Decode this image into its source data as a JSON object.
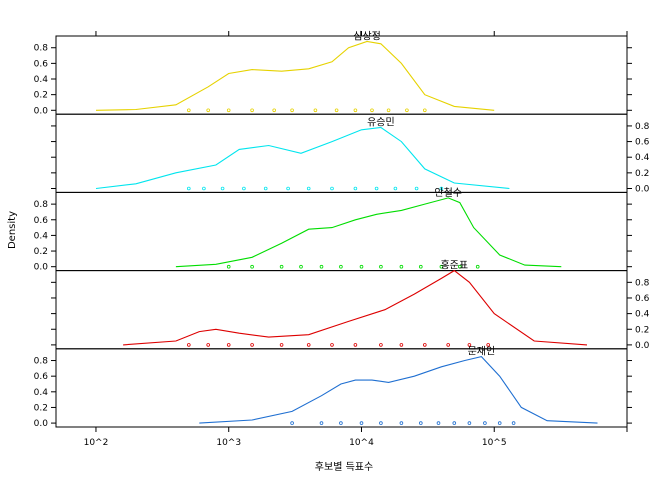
{
  "chart_data": {
    "type": "line",
    "chart_kind": "density plot with rug strips, stacked panels",
    "xlabel": "후보별 득표수",
    "ylabel": "Density",
    "x_scale": "log10",
    "xlim": [
      50,
      1000000
    ],
    "x_tick_values": [
      100,
      1000,
      10000,
      100000
    ],
    "x_tick_labels": [
      "10^2",
      "10^3",
      "10^4",
      "10^5"
    ],
    "ylim": [
      -0.05,
      0.95
    ],
    "y_ticks": [
      0.0,
      0.2,
      0.4,
      0.6,
      0.8
    ],
    "y_tick_labels": [
      "0.0",
      "0.2",
      "0.4",
      "0.6",
      "0.8"
    ],
    "grid": false,
    "legend": "none",
    "panels": [
      {
        "name": "심상정",
        "color": "#e6d200",
        "y_axis_side": "left",
        "points": [
          [
            100,
            0.0
          ],
          [
            200,
            0.01
          ],
          [
            400,
            0.07
          ],
          [
            700,
            0.3
          ],
          [
            1000,
            0.47
          ],
          [
            1500,
            0.52
          ],
          [
            2500,
            0.5
          ],
          [
            4000,
            0.53
          ],
          [
            6000,
            0.62
          ],
          [
            8000,
            0.8
          ],
          [
            11000,
            0.88
          ],
          [
            14000,
            0.85
          ],
          [
            20000,
            0.6
          ],
          [
            30000,
            0.2
          ],
          [
            50000,
            0.05
          ],
          [
            100000,
            0.0
          ]
        ],
        "rug": [
          500,
          700,
          1000,
          1500,
          2200,
          3000,
          4500,
          6500,
          9000,
          12000,
          16000,
          22000,
          30000
        ]
      },
      {
        "name": "유승민",
        "color": "#00e5ee",
        "y_axis_side": "right",
        "points": [
          [
            100,
            0.0
          ],
          [
            200,
            0.06
          ],
          [
            400,
            0.2
          ],
          [
            800,
            0.3
          ],
          [
            1200,
            0.5
          ],
          [
            2000,
            0.55
          ],
          [
            3500,
            0.45
          ],
          [
            6000,
            0.6
          ],
          [
            10000,
            0.75
          ],
          [
            14000,
            0.78
          ],
          [
            20000,
            0.6
          ],
          [
            30000,
            0.25
          ],
          [
            50000,
            0.07
          ],
          [
            130000,
            0.0
          ]
        ],
        "rug": [
          500,
          650,
          900,
          1300,
          1900,
          2800,
          4000,
          6000,
          9000,
          13000,
          18000,
          26000,
          40000
        ]
      },
      {
        "name": "안철수",
        "color": "#00dd00",
        "y_axis_side": "left",
        "points": [
          [
            400,
            0.0
          ],
          [
            800,
            0.03
          ],
          [
            1500,
            0.12
          ],
          [
            2500,
            0.3
          ],
          [
            4000,
            0.48
          ],
          [
            6000,
            0.5
          ],
          [
            9000,
            0.6
          ],
          [
            13000,
            0.67
          ],
          [
            20000,
            0.72
          ],
          [
            30000,
            0.8
          ],
          [
            45000,
            0.88
          ],
          [
            55000,
            0.82
          ],
          [
            70000,
            0.5
          ],
          [
            110000,
            0.15
          ],
          [
            170000,
            0.02
          ],
          [
            320000,
            0.0
          ]
        ],
        "rug": [
          1000,
          1500,
          2500,
          3500,
          5000,
          7000,
          10000,
          14000,
          20000,
          28000,
          40000,
          55000,
          75000
        ]
      },
      {
        "name": "홍준표",
        "color": "#dd0000",
        "y_axis_side": "right",
        "points": [
          [
            160,
            0.0
          ],
          [
            400,
            0.05
          ],
          [
            600,
            0.17
          ],
          [
            800,
            0.2
          ],
          [
            1200,
            0.15
          ],
          [
            2000,
            0.1
          ],
          [
            4000,
            0.13
          ],
          [
            8000,
            0.3
          ],
          [
            15000,
            0.45
          ],
          [
            25000,
            0.65
          ],
          [
            40000,
            0.85
          ],
          [
            50000,
            0.95
          ],
          [
            65000,
            0.8
          ],
          [
            100000,
            0.4
          ],
          [
            200000,
            0.05
          ],
          [
            500000,
            0.0
          ]
        ],
        "rug": [
          500,
          700,
          1000,
          1500,
          2500,
          4000,
          6000,
          9000,
          14000,
          20000,
          30000,
          45000,
          65000,
          90000
        ]
      },
      {
        "name": "문재인",
        "color": "#1f6fd1",
        "y_axis_side": "left",
        "points": [
          [
            600,
            0.0
          ],
          [
            1500,
            0.04
          ],
          [
            3000,
            0.15
          ],
          [
            5000,
            0.35
          ],
          [
            7000,
            0.5
          ],
          [
            9000,
            0.55
          ],
          [
            12000,
            0.55
          ],
          [
            16000,
            0.52
          ],
          [
            25000,
            0.6
          ],
          [
            40000,
            0.72
          ],
          [
            60000,
            0.8
          ],
          [
            80000,
            0.85
          ],
          [
            110000,
            0.6
          ],
          [
            160000,
            0.2
          ],
          [
            250000,
            0.03
          ],
          [
            600000,
            0.0
          ]
        ],
        "rug": [
          3000,
          5000,
          7000,
          10000,
          14000,
          20000,
          28000,
          38000,
          50000,
          65000,
          85000,
          110000,
          140000
        ]
      }
    ]
  }
}
